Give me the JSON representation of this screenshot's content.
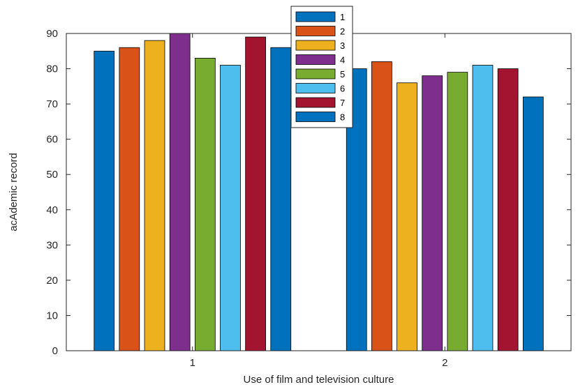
{
  "chart_data": {
    "type": "bar",
    "categories": [
      "1",
      "2"
    ],
    "xlabel": "Use of film and television culture",
    "ylabel": "acAdemic record",
    "ylim": [
      0,
      90
    ],
    "yticks": [
      0,
      10,
      20,
      30,
      40,
      50,
      60,
      70,
      80,
      90
    ],
    "grid": false,
    "legend_position": "top-center",
    "series": [
      {
        "name": "1",
        "color": "#0072BD",
        "values": [
          85,
          80
        ]
      },
      {
        "name": "2",
        "color": "#D95319",
        "values": [
          86,
          82
        ]
      },
      {
        "name": "3",
        "color": "#EDB120",
        "values": [
          88,
          76
        ]
      },
      {
        "name": "4",
        "color": "#7E2F8E",
        "values": [
          90,
          78
        ]
      },
      {
        "name": "5",
        "color": "#77AC30",
        "values": [
          83,
          79
        ]
      },
      {
        "name": "6",
        "color": "#4DBEEE",
        "values": [
          81,
          81
        ]
      },
      {
        "name": "7",
        "color": "#A2142F",
        "values": [
          89,
          80
        ]
      },
      {
        "name": "8",
        "color": "#0072BD",
        "values": [
          86,
          72
        ]
      }
    ]
  }
}
